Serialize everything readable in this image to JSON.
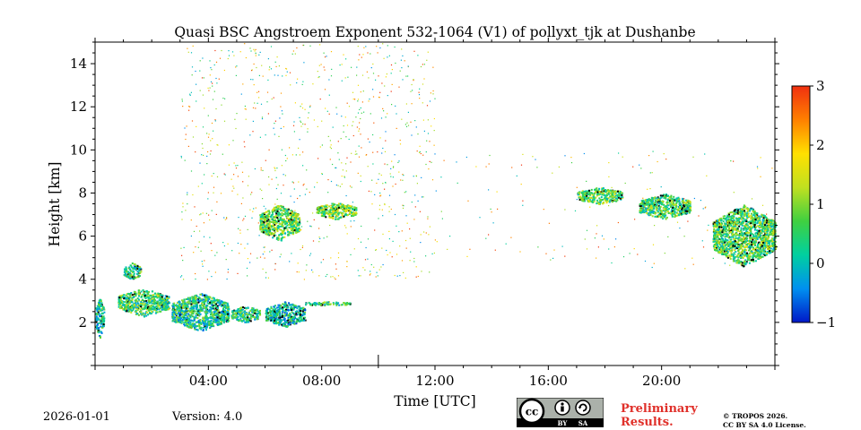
{
  "chart_data": {
    "type": "heatmap",
    "title": "Quasi BSC Angstroem Exponent 532-1064 (V1) of pollyxt_tjk at Dushanbe",
    "xlabel": "Time [UTC]",
    "ylabel": "Height [km]",
    "xlim_hours": [
      0,
      24
    ],
    "ylim_km": [
      0,
      15
    ],
    "x_ticks": [
      {
        "value": 4,
        "label": "04:00"
      },
      {
        "value": 8,
        "label": "08:00"
      },
      {
        "value": 12,
        "label": "12:00"
      },
      {
        "value": 16,
        "label": "16:00"
      },
      {
        "value": 20,
        "label": "20:00"
      }
    ],
    "y_ticks": [
      {
        "value": 2,
        "label": "2"
      },
      {
        "value": 4,
        "label": "4"
      },
      {
        "value": 6,
        "label": "6"
      },
      {
        "value": 8,
        "label": "8"
      },
      {
        "value": 10,
        "label": "10"
      },
      {
        "value": 12,
        "label": "12"
      },
      {
        "value": 14,
        "label": "14"
      }
    ],
    "colorbar": {
      "range": [
        -1,
        3
      ],
      "ticks": [
        {
          "value": 3,
          "label": "3"
        },
        {
          "value": 2,
          "label": "2"
        },
        {
          "value": 1,
          "label": "1"
        },
        {
          "value": 0,
          "label": "0"
        },
        {
          "value": -1,
          "label": "−1"
        }
      ],
      "colormap": [
        "#0018c8",
        "#0090f0",
        "#00d0a0",
        "#40d040",
        "#c0e020",
        "#ffe000",
        "#ff8000",
        "#f03010"
      ]
    },
    "features": [
      {
        "name": "boundary-layer-aerosol-early",
        "t_start": 0.0,
        "t_end": 0.3,
        "h_bottom": 1.3,
        "h_top": 3.2,
        "angstrom": 0.2
      },
      {
        "name": "boundary-layer-aerosol-1",
        "t_start": 0.8,
        "t_end": 2.6,
        "h_bottom": 2.3,
        "h_top": 3.6,
        "angstrom": 0.6
      },
      {
        "name": "elevated-layer-4km",
        "t_start": 1.0,
        "t_end": 1.6,
        "h_bottom": 4.0,
        "h_top": 4.8,
        "angstrom": 0.4
      },
      {
        "name": "boundary-layer-aerosol-2",
        "t_start": 2.7,
        "t_end": 4.7,
        "h_bottom": 1.6,
        "h_top": 3.4,
        "angstrom": 0.3
      },
      {
        "name": "boundary-layer-aerosol-3",
        "t_start": 4.8,
        "t_end": 5.8,
        "h_bottom": 2.0,
        "h_top": 2.8,
        "angstrom": 0.4
      },
      {
        "name": "boundary-layer-aerosol-4",
        "t_start": 6.0,
        "t_end": 7.4,
        "h_bottom": 1.8,
        "h_top": 3.0,
        "angstrom": 0.1
      },
      {
        "name": "thin-layer-3km",
        "t_start": 7.4,
        "t_end": 9.0,
        "h_bottom": 2.8,
        "h_top": 3.0,
        "angstrom": 0.5
      },
      {
        "name": "mid-layer-6-7km",
        "t_start": 5.8,
        "t_end": 7.2,
        "h_bottom": 5.8,
        "h_top": 7.5,
        "angstrom": 0.8
      },
      {
        "name": "mid-layer-7km",
        "t_start": 7.8,
        "t_end": 9.2,
        "h_bottom": 6.8,
        "h_top": 7.6,
        "angstrom": 0.9
      },
      {
        "name": "cirrus-8km",
        "t_start": 17.0,
        "t_end": 18.6,
        "h_bottom": 7.5,
        "h_top": 8.3,
        "angstrom": 0.8
      },
      {
        "name": "cirrus-7km",
        "t_start": 19.2,
        "t_end": 21.0,
        "h_bottom": 6.8,
        "h_top": 8.0,
        "angstrom": 0.6
      },
      {
        "name": "lofted-layer-late",
        "t_start": 21.8,
        "t_end": 24.0,
        "h_bottom": 4.6,
        "h_top": 7.5,
        "angstrom": 0.7
      }
    ],
    "scatter_regions": [
      {
        "t_start": 3.0,
        "t_end": 12.0,
        "h_bottom": 4.0,
        "h_top": 15.0,
        "density": "high"
      },
      {
        "t_start": 12.0,
        "t_end": 24.0,
        "h_bottom": 4.5,
        "h_top": 10.0,
        "density": "low"
      }
    ],
    "data_gap_marker_hour": 10.0
  },
  "footer": {
    "date": "2026-01-01",
    "version": "Version: 4.0",
    "license_badge": "cc-by-sa-badge",
    "license_badge_text": [
      "BY",
      "SA"
    ],
    "preliminary": [
      "Preliminary",
      "Results."
    ],
    "copyright": [
      "© TROPOS 2026.",
      "CC BY SA 4.0 License."
    ]
  }
}
